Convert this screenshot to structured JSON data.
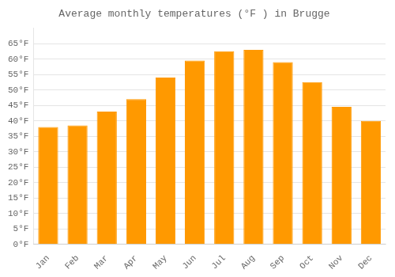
{
  "chart_data": {
    "type": "bar",
    "title": "Average monthly temperatures (°F ) in Brugge",
    "categories": [
      "Jan",
      "Feb",
      "Mar",
      "Apr",
      "May",
      "Jun",
      "Jul",
      "Aug",
      "Sep",
      "Oct",
      "Nov",
      "Dec"
    ],
    "values": [
      38,
      38.5,
      43,
      47,
      54,
      59.5,
      62.5,
      63,
      59,
      52.5,
      44.5,
      40
    ],
    "color": "#FF9900",
    "ylim": [
      0,
      70
    ],
    "yticks": [
      {
        "value": 0,
        "label": "0°F"
      },
      {
        "value": 5,
        "label": "5°F"
      },
      {
        "value": 10,
        "label": "10°F"
      },
      {
        "value": 15,
        "label": "15°F"
      },
      {
        "value": 20,
        "label": "20°F"
      },
      {
        "value": 25,
        "label": "25°F"
      },
      {
        "value": 30,
        "label": "30°F"
      },
      {
        "value": 35,
        "label": "35°F"
      },
      {
        "value": 40,
        "label": "40°F"
      },
      {
        "value": 45,
        "label": "45°F"
      },
      {
        "value": 50,
        "label": "50°F"
      },
      {
        "value": 55,
        "label": "55°F"
      },
      {
        "value": 60,
        "label": "60°F"
      },
      {
        "value": 65,
        "label": "65°F"
      }
    ],
    "grid": true
  }
}
